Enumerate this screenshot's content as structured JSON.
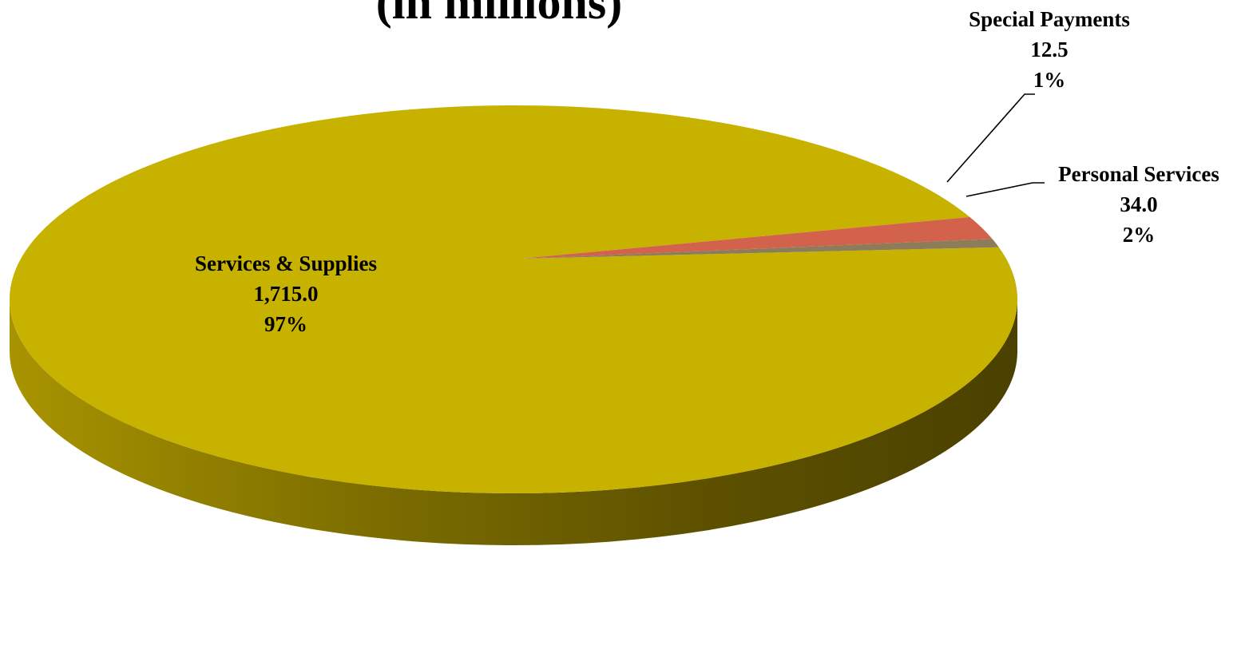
{
  "chart_data": {
    "type": "pie",
    "title": "(in millions)",
    "slices": [
      {
        "name": "Services & Supplies",
        "value_label": "1,715.0",
        "value": 1715.0,
        "percent_label": "97%",
        "color": "#c8b200"
      },
      {
        "name": "Personal Services",
        "value_label": "34.0",
        "value": 34.0,
        "percent_label": "2%",
        "color": "#d2624b"
      },
      {
        "name": "Special Payments",
        "value_label": "12.5",
        "value": 12.5,
        "percent_label": "1%",
        "color": "#8c7c5a"
      }
    ],
    "style": "3d",
    "legend": "none"
  }
}
